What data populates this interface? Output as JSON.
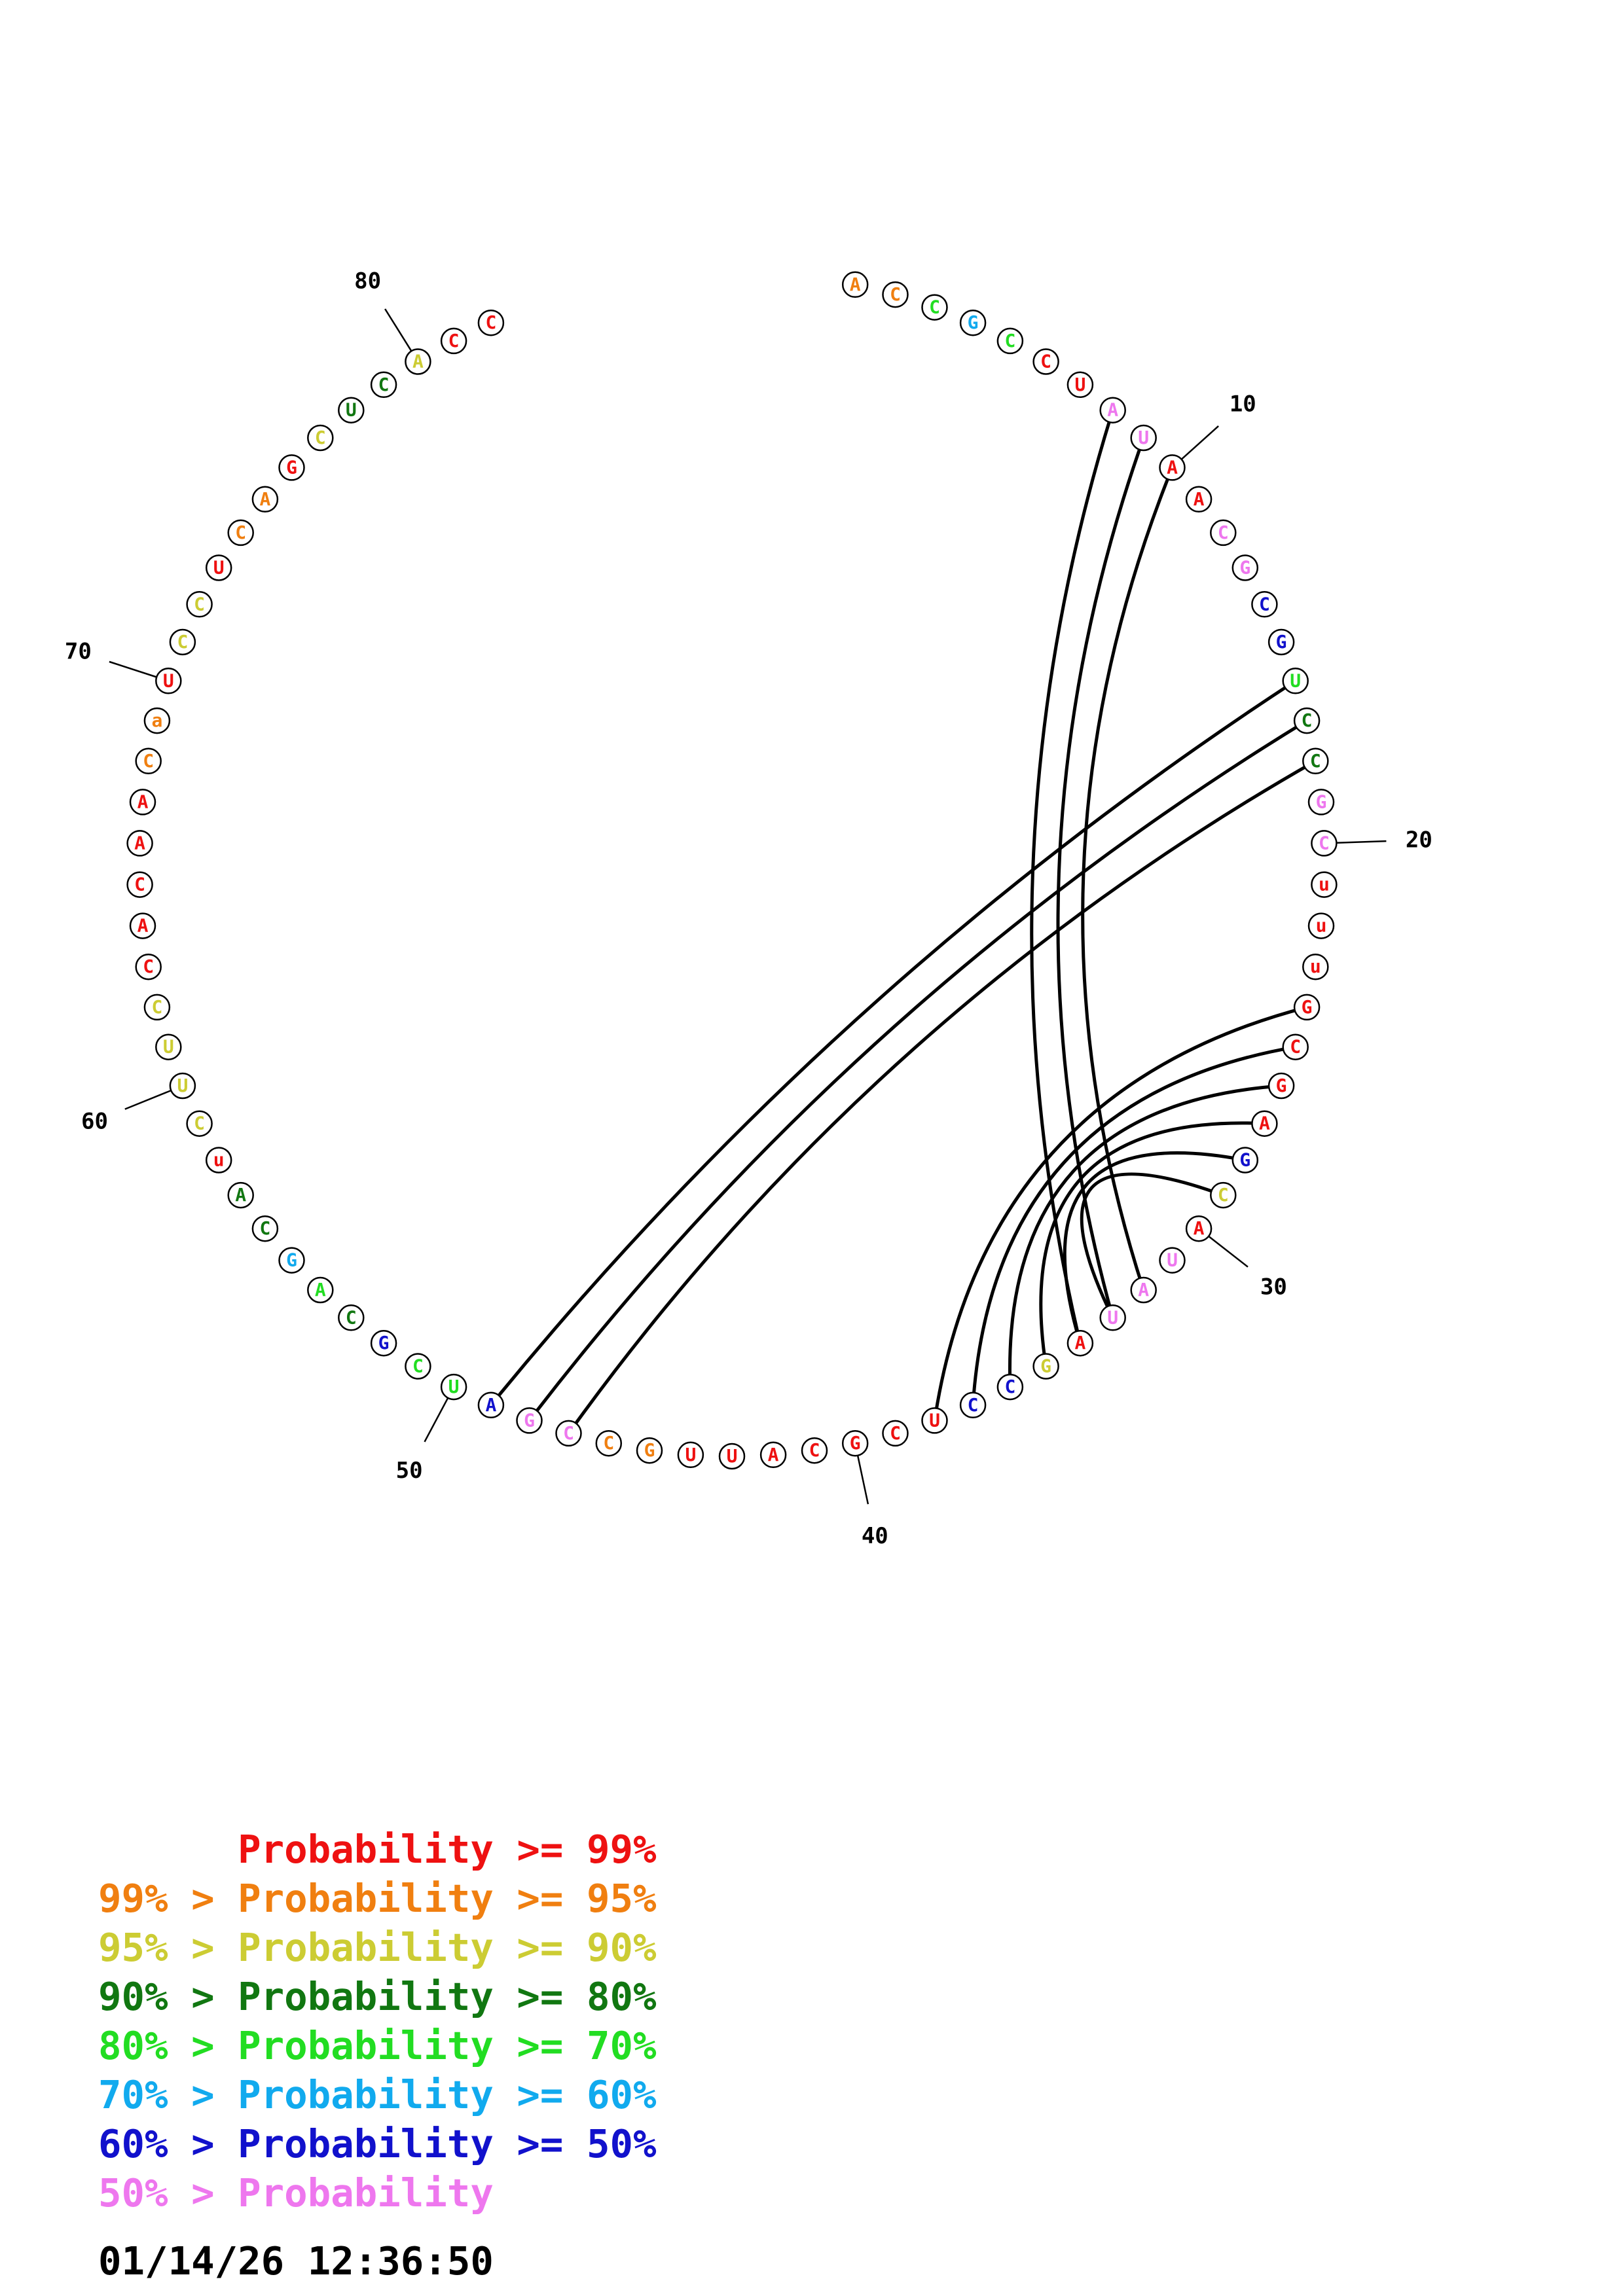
{
  "diagram": {
    "type": "circular_rna_structure",
    "sequence": [
      "A",
      "C",
      "C",
      "G",
      "C",
      "C",
      "U",
      "A",
      "U",
      "A",
      "A",
      "C",
      "G",
      "C",
      "G",
      "U",
      "C",
      "C",
      "G",
      "C",
      "u",
      "u",
      "u",
      "G",
      "C",
      "G",
      "A",
      "G",
      "C",
      "A",
      "U",
      "A",
      "U",
      "A",
      "G",
      "C",
      "C",
      "U",
      "C",
      "G",
      "C",
      "A",
      "U",
      "U",
      "G",
      "C",
      "C",
      "G",
      "A",
      "U",
      "C",
      "G",
      "C",
      "A",
      "G",
      "C",
      "A",
      "u",
      "C",
      "U",
      "U",
      "C",
      "C",
      "A",
      "C",
      "A",
      "A",
      "C",
      "a",
      "U",
      "C",
      "C",
      "U",
      "C",
      "A",
      "G",
      "C",
      "U",
      "C",
      "A",
      "C",
      "C"
    ],
    "probability_classes": [
      1,
      1,
      4,
      5,
      4,
      0,
      0,
      7,
      7,
      0,
      0,
      7,
      7,
      6,
      6,
      4,
      3,
      3,
      7,
      7,
      0,
      0,
      0,
      0,
      0,
      0,
      0,
      6,
      2,
      0,
      7,
      7,
      7,
      0,
      2,
      6,
      6,
      0,
      0,
      0,
      0,
      0,
      0,
      0,
      1,
      1,
      7,
      7,
      6,
      4,
      4,
      6,
      3,
      4,
      5,
      3,
      3,
      0,
      2,
      2,
      2,
      2,
      0,
      0,
      0,
      0,
      0,
      1,
      1,
      0,
      2,
      2,
      0,
      1,
      1,
      0,
      2,
      3,
      3,
      2,
      0,
      0
    ],
    "pairs": [
      [
        8,
        34
      ],
      [
        9,
        33
      ],
      [
        10,
        32
      ],
      [
        16,
        49
      ],
      [
        17,
        48
      ],
      [
        18,
        47
      ],
      [
        24,
        38
      ],
      [
        25,
        37
      ],
      [
        26,
        36
      ],
      [
        27,
        35
      ],
      [
        28,
        34
      ],
      [
        29,
        33
      ]
    ],
    "position_labels": [
      {
        "index": 10,
        "text": "10"
      },
      {
        "index": 20,
        "text": "20"
      },
      {
        "index": 30,
        "text": "30"
      },
      {
        "index": 40,
        "text": "40"
      },
      {
        "index": 50,
        "text": "50"
      },
      {
        "index": 60,
        "text": "60"
      },
      {
        "index": 70,
        "text": "70"
      },
      {
        "index": 80,
        "text": "80"
      }
    ],
    "colors": [
      "#ee1111",
      "#f07f10",
      "#cccc33",
      "#117711",
      "#22dd22",
      "#11aaee",
      "#1111cc",
      "#ee77ee"
    ]
  },
  "legend": [
    {
      "text": "      Probability >= 99%",
      "color": "#ee1111"
    },
    {
      "text": "99% > Probability >= 95%",
      "color": "#f07f10"
    },
    {
      "text": "95% > Probability >= 90%",
      "color": "#cccc33"
    },
    {
      "text": "90% > Probability >= 80%",
      "color": "#117711"
    },
    {
      "text": "80% > Probability >= 70%",
      "color": "#22dd22"
    },
    {
      "text": "70% > Probability >= 60%",
      "color": "#11aaee"
    },
    {
      "text": "60% > Probability >= 50%",
      "color": "#1111cc"
    },
    {
      "text": "50% > Probability",
      "color": "#ee77ee"
    }
  ],
  "timestamp": "01/14/26 12:36:50"
}
